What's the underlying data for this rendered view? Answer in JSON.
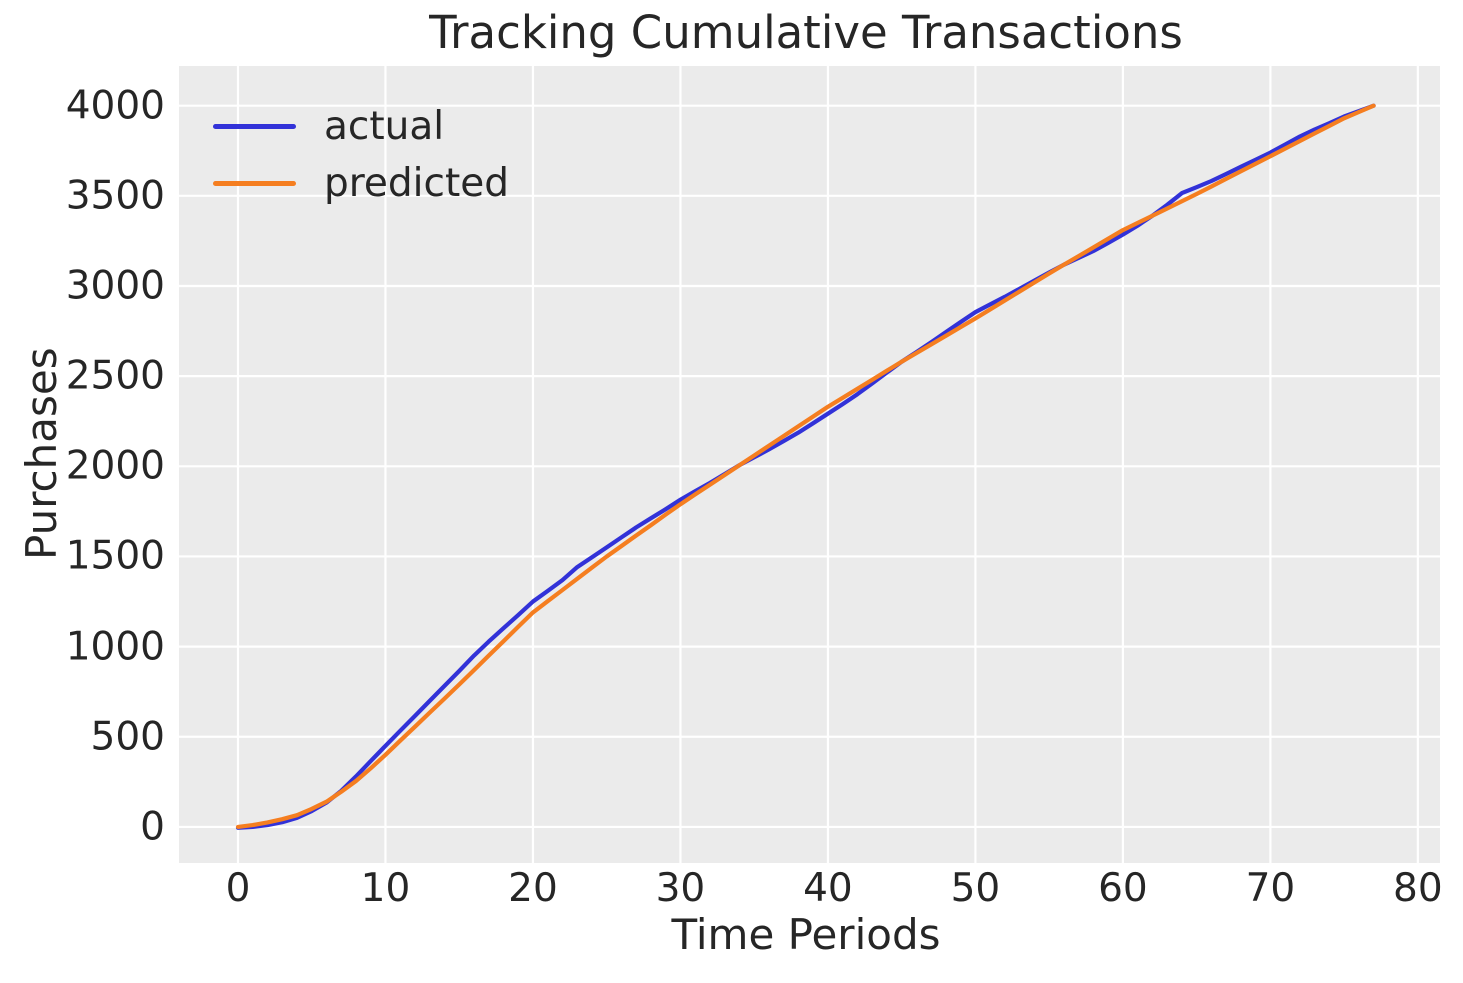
{
  "figure": {
    "title": "Tracking Cumulative Transactions",
    "xlabel": "Time Periods",
    "ylabel": "Purchases"
  },
  "legend": [
    {
      "label": "actual",
      "color": "#3232d8"
    },
    {
      "label": "predicted",
      "color": "#f57e20"
    }
  ],
  "colors": {
    "figure_bg": "#ffffff",
    "plot_bg": "#ebebeb",
    "grid": "#ffffff",
    "text": "#262626",
    "actual_line": "#3232d8",
    "predicted_line": "#f57e20"
  },
  "chart_data": {
    "type": "line",
    "title": "Tracking Cumulative Transactions",
    "xlabel": "Time Periods",
    "ylabel": "Purchases",
    "grid": true,
    "legend_position": "upper-left",
    "xlim": [
      -4,
      81.5
    ],
    "ylim": [
      -200,
      4220
    ],
    "x_ticks": [
      0,
      10,
      20,
      30,
      40,
      50,
      60,
      70,
      80
    ],
    "y_ticks": [
      0,
      500,
      1000,
      1500,
      2000,
      2500,
      3000,
      3500,
      4000
    ],
    "x": [
      0,
      1,
      2,
      3,
      4,
      5,
      6,
      7,
      8,
      9,
      10,
      11,
      12,
      13,
      14,
      15,
      16,
      17,
      18,
      19,
      20,
      21,
      22,
      23,
      24,
      25,
      26,
      27,
      28,
      29,
      30,
      31,
      32,
      33,
      34,
      35,
      36,
      37,
      38,
      39,
      40,
      41,
      42,
      43,
      44,
      45,
      46,
      47,
      48,
      49,
      50,
      51,
      52,
      53,
      54,
      55,
      56,
      57,
      58,
      59,
      60,
      61,
      62,
      63,
      64,
      65,
      66,
      67,
      68,
      69,
      70,
      71,
      72,
      73,
      74,
      75,
      76,
      77
    ],
    "series": [
      {
        "name": "actual",
        "color": "#3232d8",
        "values": [
          -5,
          0,
          10,
          26,
          50,
          88,
          135,
          200,
          280,
          365,
          450,
          533,
          616,
          699,
          782,
          865,
          950,
          1028,
          1102,
          1175,
          1250,
          1309,
          1369,
          1441,
          1496,
          1550,
          1606,
          1661,
          1712,
          1762,
          1815,
          1862,
          1908,
          1957,
          2006,
          2050,
          2094,
          2140,
          2187,
          2239,
          2292,
          2345,
          2400,
          2460,
          2520,
          2580,
          2633,
          2688,
          2744,
          2800,
          2855,
          2898,
          2940,
          2985,
          3030,
          3075,
          3118,
          3156,
          3194,
          3239,
          3285,
          3335,
          3390,
          3450,
          3515,
          3548,
          3582,
          3621,
          3661,
          3700,
          3740,
          3784,
          3829,
          3868,
          3903,
          3940,
          3970,
          4000
        ]
      },
      {
        "name": "predicted",
        "color": "#f57e20",
        "values": [
          0,
          10,
          25,
          43,
          65,
          100,
          140,
          195,
          255,
          325,
          400,
          478,
          556,
          634,
          712,
          790,
          870,
          950,
          1030,
          1110,
          1190,
          1252,
          1314,
          1376,
          1438,
          1500,
          1558,
          1616,
          1674,
          1732,
          1790,
          1844,
          1898,
          1952,
          2006,
          2060,
          2114,
          2168,
          2222,
          2276,
          2330,
          2380,
          2430,
          2480,
          2530,
          2580,
          2628,
          2676,
          2724,
          2772,
          2820,
          2870,
          2920,
          2970,
          3020,
          3070,
          3118,
          3166,
          3214,
          3262,
          3310,
          3350,
          3390,
          3430,
          3470,
          3510,
          3552,
          3594,
          3636,
          3678,
          3720,
          3762,
          3804,
          3846,
          3888,
          3930,
          3965,
          4000
        ]
      }
    ]
  }
}
